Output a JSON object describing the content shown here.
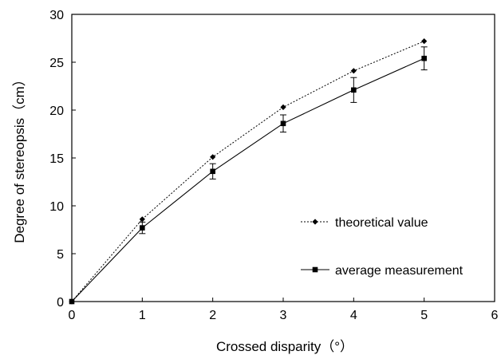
{
  "chart_data": {
    "type": "line",
    "xlabel": "Crossed disparity（°）",
    "ylabel": "Degree of stereopsis（cm）",
    "xlim": [
      0,
      6
    ],
    "ylim": [
      0,
      30
    ],
    "x_ticks": [
      "0",
      "1",
      "2",
      "3",
      "4",
      "5",
      "6"
    ],
    "y_ticks": [
      "0",
      "5",
      "10",
      "15",
      "20",
      "25",
      "30"
    ],
    "grid": false,
    "legend_position": "bottom-right",
    "series": [
      {
        "name": "theoretical value",
        "marker": "diamond",
        "line_style": "dotted",
        "x": [
          0,
          1,
          2,
          3,
          4,
          5
        ],
        "values": [
          0,
          8.6,
          15.1,
          20.3,
          24.1,
          27.2
        ]
      },
      {
        "name": "average measurement",
        "marker": "square",
        "line_style": "solid",
        "x": [
          0,
          1,
          2,
          3,
          4,
          5
        ],
        "values": [
          0,
          7.7,
          13.6,
          18.6,
          22.1,
          25.4
        ],
        "error": [
          0,
          0.6,
          0.8,
          0.9,
          1.3,
          1.2
        ]
      }
    ]
  }
}
